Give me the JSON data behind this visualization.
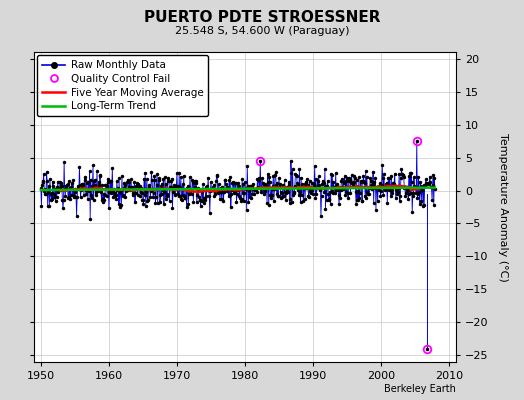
{
  "title": "PUERTO PDTE STROESSNER",
  "subtitle": "25.548 S, 54.600 W (Paraguay)",
  "ylabel": "Temperature Anomaly (°C)",
  "watermark": "Berkeley Earth",
  "xlim": [
    1949,
    2011
  ],
  "ylim": [
    -26,
    21
  ],
  "yticks": [
    -25,
    -20,
    -15,
    -10,
    -5,
    0,
    5,
    10,
    15,
    20
  ],
  "xticks": [
    1950,
    1960,
    1970,
    1980,
    1990,
    2000,
    2010
  ],
  "bg_color": "#d8d8d8",
  "plot_bg_color": "#ffffff",
  "raw_line_color": "#0000dd",
  "raw_marker_color": "#000000",
  "qc_fail_color": "#ff00ff",
  "moving_avg_color": "#ff0000",
  "trend_color": "#00bb00",
  "seed": 17,
  "start_year": 1950,
  "end_year": 2008,
  "noise_std": 1.3,
  "trend_slope": 0.008,
  "qc_fail_points": [
    [
      1982.25,
      4.5
    ],
    [
      2005.25,
      7.5
    ],
    [
      2006.75,
      -24.0
    ]
  ],
  "large_spike_year": 2006.75,
  "large_spike_value": -24.0,
  "large_spike_top": -0.5
}
